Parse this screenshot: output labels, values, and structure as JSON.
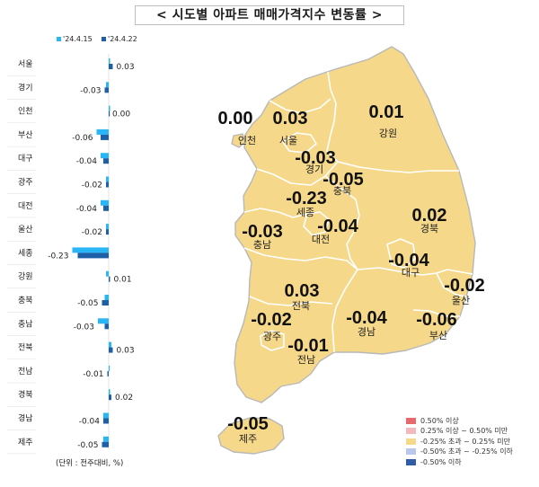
{
  "title": "< 시도별 아파트 매매가격지수 변동률 >",
  "chart_data": {
    "type": "bar",
    "orientation": "horizontal",
    "categories": [
      "서울",
      "경기",
      "인천",
      "부산",
      "대구",
      "광주",
      "대전",
      "울산",
      "세종",
      "강원",
      "충북",
      "충남",
      "전북",
      "전남",
      "경북",
      "경남",
      "제주"
    ],
    "series": [
      {
        "name": "'24.4.15",
        "color": "#29b6f6",
        "values": [
          0.01,
          -0.02,
          0.01,
          -0.09,
          -0.06,
          -0.02,
          -0.06,
          -0.02,
          -0.27,
          -0.02,
          -0.03,
          -0.08,
          0.02,
          0.0,
          0.01,
          -0.04,
          -0.04
        ]
      },
      {
        "name": "'24.4.22",
        "color": "#1f5fa8",
        "values": [
          0.03,
          -0.03,
          0.0,
          -0.06,
          -0.04,
          -0.02,
          -0.04,
          -0.02,
          -0.23,
          0.01,
          -0.05,
          -0.03,
          0.03,
          -0.01,
          0.02,
          -0.04,
          -0.05
        ]
      }
    ],
    "value_labels": [
      "0.03",
      "-0.03",
      "0.00",
      "-0.06",
      "-0.04",
      "-0.02",
      "-0.04",
      "-0.02",
      "-0.23",
      "0.01",
      "-0.05",
      "-0.03",
      "0.03",
      "-0.01",
      "0.02",
      "-0.04",
      "-0.05"
    ],
    "legend_position": "top",
    "unit_note": "(단위 : 전주대비, %)"
  },
  "map": {
    "regions": [
      {
        "name": "인천",
        "value": "0.00"
      },
      {
        "name": "서울",
        "value": "0.03"
      },
      {
        "name": "경기",
        "value": "-0.03"
      },
      {
        "name": "강원",
        "value": "0.01"
      },
      {
        "name": "충북",
        "value": "-0.05"
      },
      {
        "name": "세종",
        "value": "-0.23"
      },
      {
        "name": "충남",
        "value": "-0.03"
      },
      {
        "name": "대전",
        "value": "-0.04"
      },
      {
        "name": "경북",
        "value": "0.02"
      },
      {
        "name": "대구",
        "value": "-0.04"
      },
      {
        "name": "울산",
        "value": "-0.02"
      },
      {
        "name": "전북",
        "value": "0.03"
      },
      {
        "name": "경남",
        "value": "-0.04"
      },
      {
        "name": "부산",
        "value": "-0.06"
      },
      {
        "name": "광주",
        "value": "-0.02"
      },
      {
        "name": "전남",
        "value": "-0.01"
      },
      {
        "name": "제주",
        "value": "-0.05"
      }
    ],
    "fill_color": "#f5d889",
    "border_color": "#b8b8b8"
  },
  "legend": [
    {
      "label": "0.50% 이상",
      "color": "#e8696b"
    },
    {
      "label": "0.25% 이상 ~ 0.50% 미만",
      "color": "#f4b8bf"
    },
    {
      "label": "-0.25% 초과 ~ 0.25% 미만",
      "color": "#f5d889"
    },
    {
      "label": "-0.50% 초과 ~ -0.25% 이하",
      "color": "#b9c7ea"
    },
    {
      "label": "-0.50% 이하",
      "color": "#2f5ba7"
    }
  ]
}
